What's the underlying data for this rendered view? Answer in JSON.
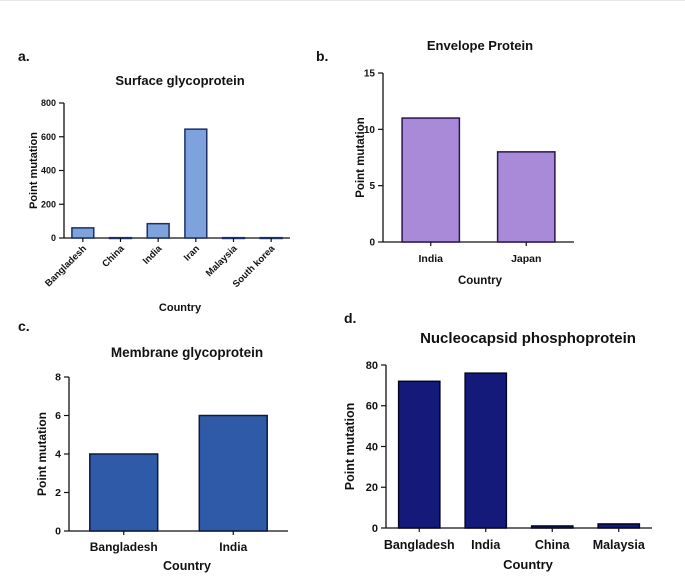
{
  "panel_labels": [
    "a.",
    "b.",
    "c.",
    "d."
  ],
  "chart_data": [
    {
      "type": "bar",
      "title": "Surface glycoprotein",
      "xlabel": "Country",
      "ylabel": "Point mutation",
      "categories": [
        "Bangladesh",
        "China",
        "India",
        "Iran",
        "Malaysia",
        "South korea"
      ],
      "values": [
        60,
        2,
        85,
        645,
        2,
        2
      ],
      "ylim": [
        0,
        800
      ],
      "yticks": [
        0,
        200,
        400,
        600,
        800
      ],
      "colors": {
        "fill": "#7ea3dc",
        "stroke": "#1c2f66"
      },
      "grid": false
    },
    {
      "type": "bar",
      "title": "Envelope Protein",
      "xlabel": "Country",
      "ylabel": "Point mutation",
      "categories": [
        "India",
        "Japan"
      ],
      "values": [
        11,
        8
      ],
      "ylim": [
        0,
        15
      ],
      "yticks": [
        0,
        5,
        10,
        15
      ],
      "colors": {
        "fill": "#a98ad8",
        "stroke": "#2a1650"
      },
      "grid": false
    },
    {
      "type": "bar",
      "title": "Membrane glycoprotein",
      "xlabel": "Country",
      "ylabel": "Point mutation",
      "categories": [
        "Bangladesh",
        "India"
      ],
      "values": [
        4,
        6
      ],
      "ylim": [
        0,
        8
      ],
      "yticks": [
        0,
        2,
        4,
        6,
        8
      ],
      "colors": {
        "fill": "#2f5aa8",
        "stroke": "#0b1a3d"
      },
      "grid": false
    },
    {
      "type": "bar",
      "title": "Nucleocapsid phosphoprotein",
      "xlabel": "Country",
      "ylabel": "Point mutation",
      "categories": [
        "Bangladesh",
        "India",
        "China",
        "Malaysia"
      ],
      "values": [
        72,
        76,
        1,
        2
      ],
      "ylim": [
        0,
        80
      ],
      "yticks": [
        0,
        20,
        40,
        60,
        80
      ],
      "colors": {
        "fill": "#141a7a",
        "stroke": "#05071f"
      },
      "grid": false
    }
  ]
}
